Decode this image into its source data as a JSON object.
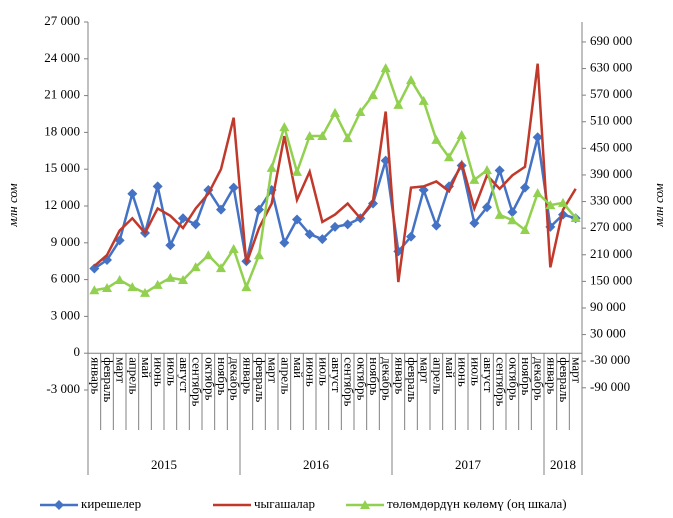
{
  "chart_data": {
    "type": "line",
    "y_label": "млн сом",
    "y2_label": "млн сом",
    "categories": [
      "январь",
      "февраль",
      "март",
      "апрель",
      "май",
      "июнь",
      "июль",
      "август",
      "сентябрь",
      "октябрь",
      "ноябрь",
      "декабрь",
      "январь",
      "февраль",
      "март",
      "апрель",
      "май",
      "июнь",
      "июль",
      "август",
      "сентябрь",
      "октябрь",
      "ноябрь",
      "декабрь",
      "январь",
      "февраль",
      "март",
      "апрель",
      "май",
      "июнь",
      "июль",
      "август",
      "сентябрь",
      "октябрь",
      "ноябрь",
      "декабрь",
      "январь",
      "февраль",
      "март"
    ],
    "years": [
      "2015",
      "2016",
      "2017",
      "2018"
    ],
    "series": [
      {
        "name": "кирешелер",
        "color": "#4472c4",
        "marker": "diamond",
        "values": [
          6900,
          7600,
          9200,
          13000,
          9800,
          13600,
          8800,
          11000,
          10500,
          13300,
          11700,
          13500,
          7500,
          11700,
          13300,
          9000,
          10900,
          9700,
          9300,
          10300,
          10500,
          11000,
          12200,
          15700,
          8300,
          9500,
          13300,
          10400,
          13600,
          15300,
          10600,
          11900,
          14900,
          11500,
          13500,
          17600,
          10300,
          11300,
          11000
        ]
      },
      {
        "name": "чыгашалар",
        "color": "#c0392b",
        "marker": "none",
        "values": [
          7100,
          8000,
          10000,
          11000,
          9800,
          11800,
          11200,
          10200,
          11800,
          13000,
          15000,
          19200,
          7300,
          10200,
          12200,
          17700,
          12500,
          14800,
          10700,
          11300,
          12200,
          11000,
          12400,
          19700,
          5800,
          13500,
          13600,
          14000,
          13200,
          15500,
          11800,
          14500,
          13400,
          14500,
          15200,
          23600,
          7000,
          11700,
          13400
        ]
      },
      {
        "name": "төлөмдөрдүн көлөмү (оң шкала)",
        "color": "#92d050",
        "marker": "triangle",
        "axis": "y2",
        "values": [
          130000,
          135000,
          153000,
          137000,
          124000,
          142000,
          158000,
          153000,
          182000,
          209000,
          180000,
          223000,
          137000,
          209000,
          406000,
          498000,
          397000,
          478000,
          478000,
          530000,
          473000,
          532000,
          570000,
          631000,
          548000,
          604000,
          557000,
          469000,
          430000,
          480000,
          379000,
          401000,
          300000,
          288000,
          266000,
          349000,
          322000,
          327000,
          293000
        ]
      }
    ],
    "ylim": [
      -3000,
      27000
    ],
    "yticks": [
      {
        "value": -3000,
        "label": "-3 000"
      },
      0,
      {
        "value": 3000,
        "label": "3 000"
      },
      {
        "value": 6000,
        "label": "6 000"
      },
      {
        "value": 9000,
        "label": "9 000"
      },
      {
        "value": 12000,
        "label": "12 000"
      },
      {
        "value": 15000,
        "label": "15 000"
      },
      {
        "value": 18000,
        "label": "18 000"
      },
      {
        "value": 21000,
        "label": "21 000"
      },
      {
        "value": 24000,
        "label": "24 000"
      },
      {
        "value": 27000,
        "label": "27 000"
      }
    ],
    "y2lim": [
      -95000,
      735000
    ],
    "y2ticks": [
      {
        "value": -90000,
        "label": "-90 000"
      },
      {
        "value": -30000,
        "label": "-30 000"
      },
      {
        "value": 30000,
        "label": "30 000"
      },
      {
        "value": 90000,
        "label": "90 000"
      },
      {
        "value": 150000,
        "label": "150 000"
      },
      {
        "value": 210000,
        "label": "210 000"
      },
      {
        "value": 270000,
        "label": "270 000"
      },
      {
        "value": 330000,
        "label": "330 000"
      },
      {
        "value": 390000,
        "label": "390 000"
      },
      {
        "value": 450000,
        "label": "450 000"
      },
      {
        "value": 510000,
        "label": "510 000"
      },
      {
        "value": 570000,
        "label": "570 000"
      },
      {
        "value": 630000,
        "label": "630 000"
      },
      {
        "value": 690000,
        "label": "690 000"
      }
    ],
    "legend": "bottom"
  }
}
